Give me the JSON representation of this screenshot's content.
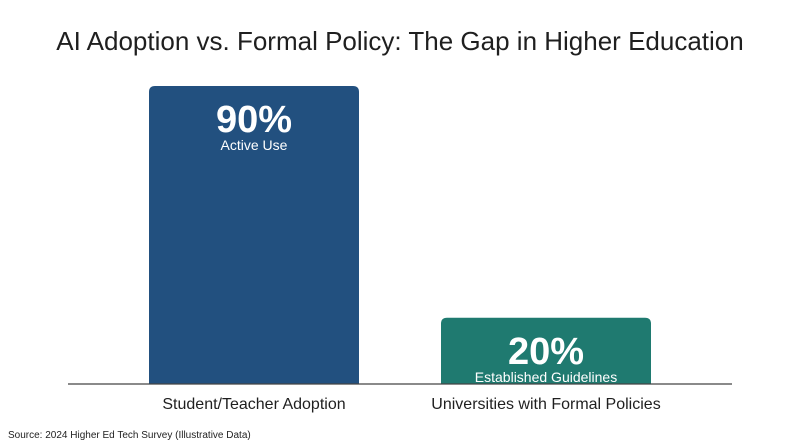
{
  "title": "AI Adoption vs. Formal Policy: The Gap in Higher Education",
  "source": "Source: 2024 Higher Ed Tech Survey (Illustrative Data)",
  "colors": {
    "bar_1": "#22507f",
    "bar_2": "#1f7a70",
    "baseline": "#444444",
    "bar_text": "#ffffff",
    "category_text": "#1f1f1f"
  },
  "chart_data": {
    "type": "bar",
    "categories": [
      "Student/Teacher Adoption",
      "Universities with Formal Policies"
    ],
    "values": [
      90,
      20
    ],
    "data_labels": [
      "90%",
      "20%"
    ],
    "sublabels": [
      "Active Use",
      "Established Guidelines"
    ],
    "title": "AI Adoption vs. Formal Policy: The Gap in Higher Education",
    "xlabel": "",
    "ylabel": "",
    "ylim": [
      0,
      100
    ],
    "grid": false,
    "legend": "none"
  }
}
